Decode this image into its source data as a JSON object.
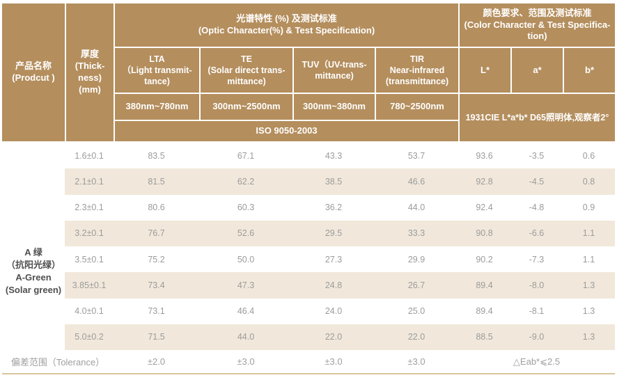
{
  "table": {
    "header": {
      "product": "产品名称\n(Prodcut )",
      "thickness": "厚度\n(Thick-\nness)\n(mm)",
      "optic_group": "光谱特性 (%) 及测试标准\n(Optic Character(%) & Test Specification)",
      "color_group": "颜色要求、范围及测试标准\n(Color Character & Test Specifica-\ntion)",
      "columns": {
        "lta": "LTA\n（Light transmit-\ntance)",
        "te": "TE\n(Solar direct trans-\nmittance)",
        "tuv": "TUV（UV-trans-\nmittance)",
        "tir": "TIR\nNear-infrared\n(transmittance)",
        "l": "L*",
        "a": "a*",
        "b": "b*"
      },
      "ranges": {
        "lta": "380nm~780nm",
        "te": "300nm~2500nm",
        "tuv": "300nm~380nm",
        "tir": "780~2500nm"
      },
      "optic_standard": "ISO 9050-2003",
      "color_standard": "1931CIE L*a*b*  D65照明体,观察者2°"
    },
    "product_name": "A 绿\n（抗阳光绿）\nA-Green\n(Solar green)",
    "rows": [
      [
        "1.6±0.1",
        "83.5",
        "67.1",
        "43.3",
        "53.7",
        "93.6",
        "-3.5",
        "0.6"
      ],
      [
        "2.1±0.1",
        "81.5",
        "62.2",
        "38.5",
        "46.6",
        "92.8",
        "-4.5",
        "0.8"
      ],
      [
        "2.3±0.1",
        "80.6",
        "60.3",
        "36.2",
        "44.0",
        "92.4",
        "-4.8",
        "0.9"
      ],
      [
        "3.2±0.1",
        "76.7",
        "52.6",
        "29.5",
        "33.3",
        "90.8",
        "-6.6",
        "1.1"
      ],
      [
        "3.5±0.1",
        "75.2",
        "50.0",
        "27.3",
        "29.9",
        "90.2",
        "-7.3",
        "1.1"
      ],
      [
        "3.85±0.1",
        "73.4",
        "47.3",
        "24.8",
        "26.7",
        "89.4",
        "-8.0",
        "1.3"
      ],
      [
        "4.0±0.1",
        "73.1",
        "46.4",
        "24.0",
        "25.0",
        "89.4",
        "-8.1",
        "1.3"
      ],
      [
        "5.0±0.2",
        "71.5",
        "44.0",
        "22.0",
        "22.0",
        "88.5",
        "-9.0",
        "1.3"
      ]
    ],
    "tolerance": {
      "label": "偏差范围（Tolerance）",
      "values": [
        "±2.0",
        "±3.0",
        "±3.0",
        "±3.0"
      ],
      "color_value": "△Eab*⩽2.5"
    }
  },
  "colors": {
    "header_bg": "#b48e5d",
    "row_shade": "#f1e8db",
    "data_text": "#9b9b9b",
    "product_text": "#4f4f4f",
    "bottom_line": "#d7c59a"
  }
}
